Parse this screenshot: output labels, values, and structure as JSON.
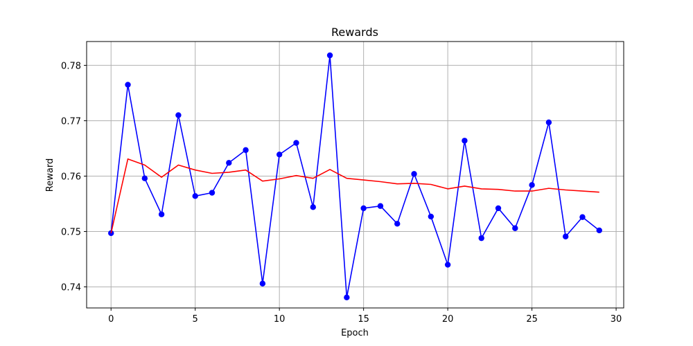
{
  "chart_data": {
    "type": "line",
    "title": "Rewards",
    "xlabel": "Epoch",
    "ylabel": "Reward",
    "xlim": [
      -1.45,
      30.45
    ],
    "ylim": [
      0.7362,
      0.7843
    ],
    "xticks": [
      0,
      5,
      10,
      15,
      20,
      25,
      30
    ],
    "xtick_labels": [
      "0",
      "5",
      "10",
      "15",
      "20",
      "25",
      "30"
    ],
    "yticks": [
      0.74,
      0.75,
      0.76,
      0.77,
      0.78
    ],
    "ytick_labels": [
      "0.74",
      "0.75",
      "0.76",
      "0.77",
      "0.78"
    ],
    "grid": true,
    "x": [
      0,
      1,
      2,
      3,
      4,
      5,
      6,
      7,
      8,
      9,
      10,
      11,
      12,
      13,
      14,
      15,
      16,
      17,
      18,
      19,
      20,
      21,
      22,
      23,
      24,
      25,
      26,
      27,
      28,
      29
    ],
    "series": [
      {
        "color": "#0000ff",
        "marker": "circle",
        "values": [
          0.7497,
          0.7765,
          0.7596,
          0.7531,
          0.771,
          0.7564,
          0.757,
          0.7624,
          0.7647,
          0.7406,
          0.7639,
          0.766,
          0.7544,
          0.7818,
          0.7381,
          0.7542,
          0.7546,
          0.7514,
          0.7604,
          0.7527,
          0.744,
          0.7664,
          0.7488,
          0.7542,
          0.7506,
          0.7584,
          0.7697,
          0.7491,
          0.7526,
          0.7502
        ]
      },
      {
        "color": "#ff0000",
        "marker": "none",
        "values": [
          0.7497,
          0.7631,
          0.762,
          0.7598,
          0.762,
          0.7611,
          0.7605,
          0.7607,
          0.7611,
          0.7591,
          0.7595,
          0.7601,
          0.7596,
          0.7612,
          0.7596,
          0.7593,
          0.759,
          0.7586,
          0.7587,
          0.7585,
          0.7577,
          0.7582,
          0.7577,
          0.7576,
          0.7573,
          0.7573,
          0.7578,
          0.7575,
          0.7573,
          0.7571
        ]
      }
    ]
  }
}
